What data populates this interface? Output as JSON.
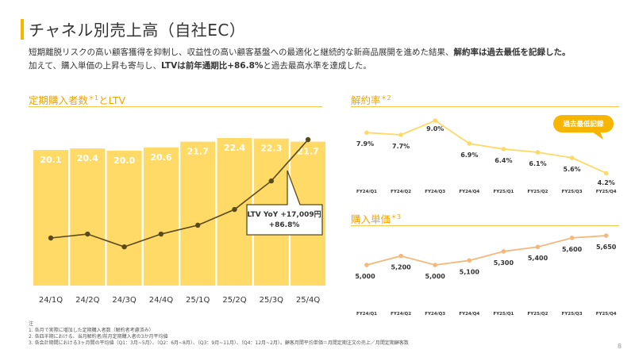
{
  "page": {
    "title": "チャネル別売上高（自社EC）",
    "lead_1": "短期離脱リスクの高い顧客獲得を抑制し、収益性の高い顧客基盤への最適化と継続的な新商品展開を進めた結果、",
    "lead_1_bold": "解約率は過去最低を記録した。",
    "lead_2": "加えて、購入単価の上昇も寄与し、",
    "lead_2_bold": "LTVは前年通期比+86.8%",
    "lead_2_tail": "と過去最高水準を達成した。",
    "page_number": "8"
  },
  "sections": {
    "left_title": "定期購入者数",
    "left_sup": "＊1",
    "left_title_tail": "とLTV",
    "churn_title": "解約率",
    "churn_sup": "＊2",
    "price_title": "購入単価",
    "price_sup": "＊3"
  },
  "notes": {
    "heading": "注",
    "n1": "1. 各月で実際に増加した定期購入者数（解約者考慮済み）",
    "n2": "2. 各四半期における、当月解約者/前月定期購入者の3か月平均値",
    "n3": "3. 各会計期間における3ヶ月間の平均値（Q1：3月~5月）、（Q2：6月~8月）、（Q3：9月~11月）、（Q4：12月~2月）。顧客月間平均単価＝月間定期注文の売上／月間定期顧客数"
  },
  "colors": {
    "accent": "#f7b500",
    "bar": "#ffda66",
    "ltv_line": "#5a4a1a",
    "churn": "#ffd966",
    "price": "#f4b77c",
    "badge": "#f7b500"
  },
  "chart_data": [
    {
      "type": "bar",
      "title": "定期購入者数＊1とLTV",
      "categories": [
        "24/1Q",
        "24/2Q",
        "24/3Q",
        "24/4Q",
        "25/1Q",
        "25/2Q",
        "25/3Q",
        "25/4Q"
      ],
      "series": [
        {
          "values": [
            20.1,
            20.4,
            20.0,
            20.6,
            21.7,
            22.4,
            22.3,
            21.7
          ]
        }
      ],
      "ltv_line_relative": [
        0.0,
        0.04,
        -0.09,
        0.04,
        0.13,
        0.29,
        0.58,
        1.0
      ],
      "callout": {
        "line1": "LTV YoY +17,009円",
        "line2": "+86.8%"
      }
    },
    {
      "type": "line",
      "title": "解約率＊2",
      "x": [
        "FY24/Q1",
        "FY24/Q2",
        "FY24/Q3",
        "FY24/Q4",
        "FY25/Q1",
        "FY25/Q2",
        "FY25/Q3",
        "FY25/Q4"
      ],
      "series": [
        {
          "values": [
            7.9,
            7.7,
            9.0,
            6.9,
            6.4,
            6.1,
            5.6,
            4.2
          ],
          "labels": [
            "7.9%",
            "7.7%",
            "9.0%",
            "6.9%",
            "6.4%",
            "6.1%",
            "5.6%",
            "4.2%"
          ]
        }
      ],
      "badge": "過去最低記録"
    },
    {
      "type": "line",
      "title": "購入単価＊3",
      "x": [
        "FY24/Q1",
        "FY24/Q2",
        "FY24/Q3",
        "FY24/Q4",
        "FY25/Q1",
        "FY25/Q2",
        "FY25/Q3",
        "FY25/Q4"
      ],
      "series": [
        {
          "values": [
            5000,
            5200,
            5000,
            5100,
            5300,
            5400,
            5600,
            5650
          ],
          "labels": [
            "5,000",
            "5,200",
            "5,000",
            "5,100",
            "5,300",
            "5,400",
            "5,600",
            "5,650"
          ]
        }
      ]
    }
  ]
}
